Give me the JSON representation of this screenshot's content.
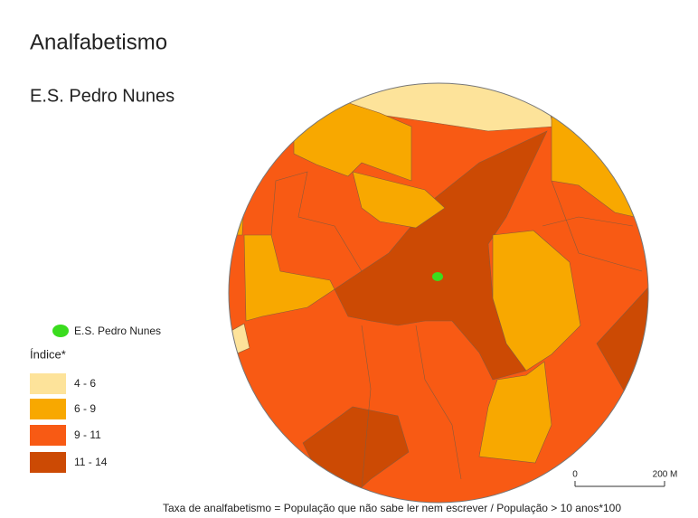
{
  "map": {
    "title": "Analfabetismo",
    "subtitle": "E.S. Pedro Nunes"
  },
  "legend": {
    "school": {
      "label": "E.S. Pedro Nunes",
      "color": "#3adc1e"
    },
    "heading": "Índice*",
    "classes": [
      {
        "label": "4 - 6",
        "color": "#fde39a"
      },
      {
        "label": "6 - 9",
        "color": "#f8a800"
      },
      {
        "label": "9 - 11",
        "color": "#f85a14"
      },
      {
        "label": "11 - 14",
        "color": "#cc4a04"
      }
    ]
  },
  "scale_bar": {
    "start": "0",
    "end": "200",
    "unit": "M"
  },
  "footnote": "Taxa de analfabetismo = População que não sabe ler nem escrever / População > 10 anos*100"
}
